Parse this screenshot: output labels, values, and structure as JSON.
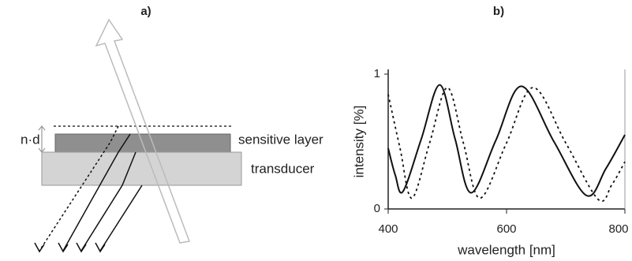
{
  "panel_a": {
    "title": "a)",
    "thickness_label": "n·d",
    "layer_label": "sensitive layer",
    "substrate_label": "transducer"
  },
  "chart_data": {
    "type": "line",
    "title": "b)",
    "xlabel": "wavelength [nm]",
    "ylabel": "intensity [%]",
    "xlim": [
      400,
      800
    ],
    "xticks": [
      400,
      600,
      800
    ],
    "ylim": [
      0,
      1
    ],
    "yticks": [
      0,
      1
    ],
    "series": [
      {
        "color": "#111111",
        "style": "solid",
        "x": [
          400,
          412,
          425,
          456,
          487,
          513,
          540,
          582,
          625,
          680,
          735,
          768,
          800
        ],
        "values": [
          0.45,
          0.25,
          0.13,
          0.52,
          0.92,
          0.52,
          0.12,
          0.51,
          0.91,
          0.5,
          0.1,
          0.3,
          0.55
        ]
      },
      {
        "color": "#111111",
        "style": "dotted",
        "x": [
          400,
          420,
          440,
          470,
          500,
          527,
          555,
          600,
          645,
          700,
          755,
          778,
          800
        ],
        "values": [
          0.85,
          0.45,
          0.08,
          0.49,
          0.9,
          0.49,
          0.08,
          0.49,
          0.9,
          0.49,
          0.07,
          0.18,
          0.35
        ]
      }
    ]
  }
}
